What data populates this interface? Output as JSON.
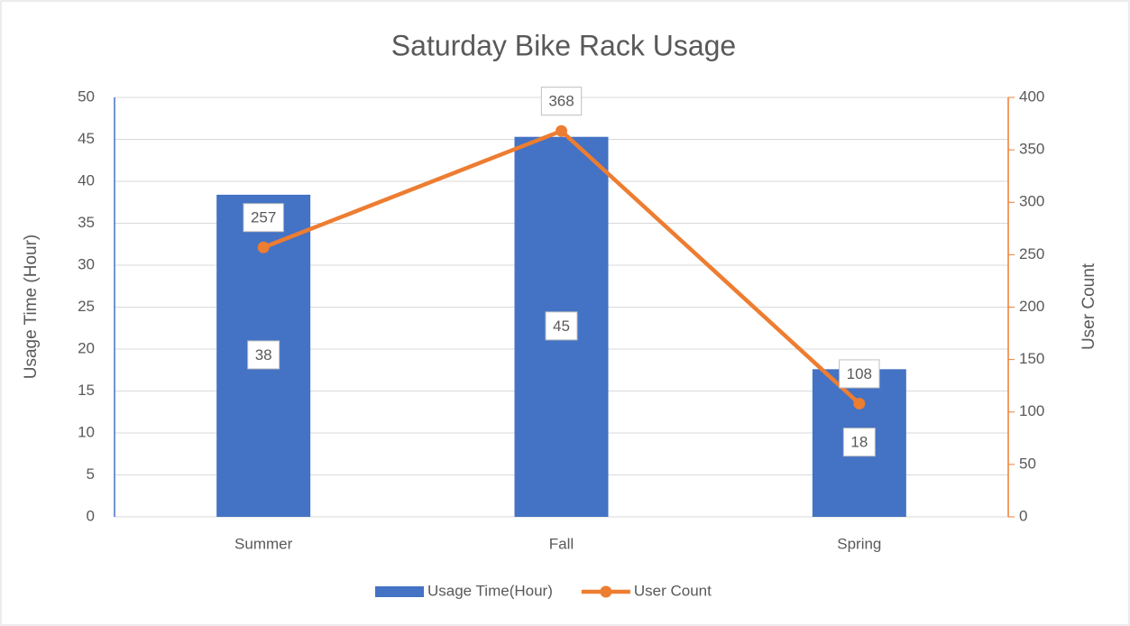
{
  "chart_data": {
    "type": "bar",
    "title": "Saturday Bike Rack Usage",
    "categories": [
      "Summer",
      "Fall",
      "Spring"
    ],
    "series": [
      {
        "name": "Usage Time(Hour)",
        "type": "bar",
        "color": "#4472c4",
        "values": [
          38.4,
          45.3,
          17.6
        ],
        "value_labels": [
          "38",
          "45",
          "18"
        ]
      },
      {
        "name": "User Count",
        "type": "line",
        "axis": "y2",
        "color": "#ed7d31",
        "values": [
          257,
          368,
          108
        ]
      }
    ],
    "ylabel": "Usage Time (Hour)",
    "y2label": "User Count",
    "ylim": [
      0,
      50
    ],
    "yticks": [
      0,
      5,
      10,
      15,
      20,
      25,
      30,
      35,
      40,
      45,
      50
    ],
    "y2lim": [
      0,
      400
    ],
    "y2ticks": [
      0,
      50,
      100,
      150,
      200,
      250,
      300,
      350,
      400
    ],
    "grid": true,
    "legend": "bottom"
  }
}
